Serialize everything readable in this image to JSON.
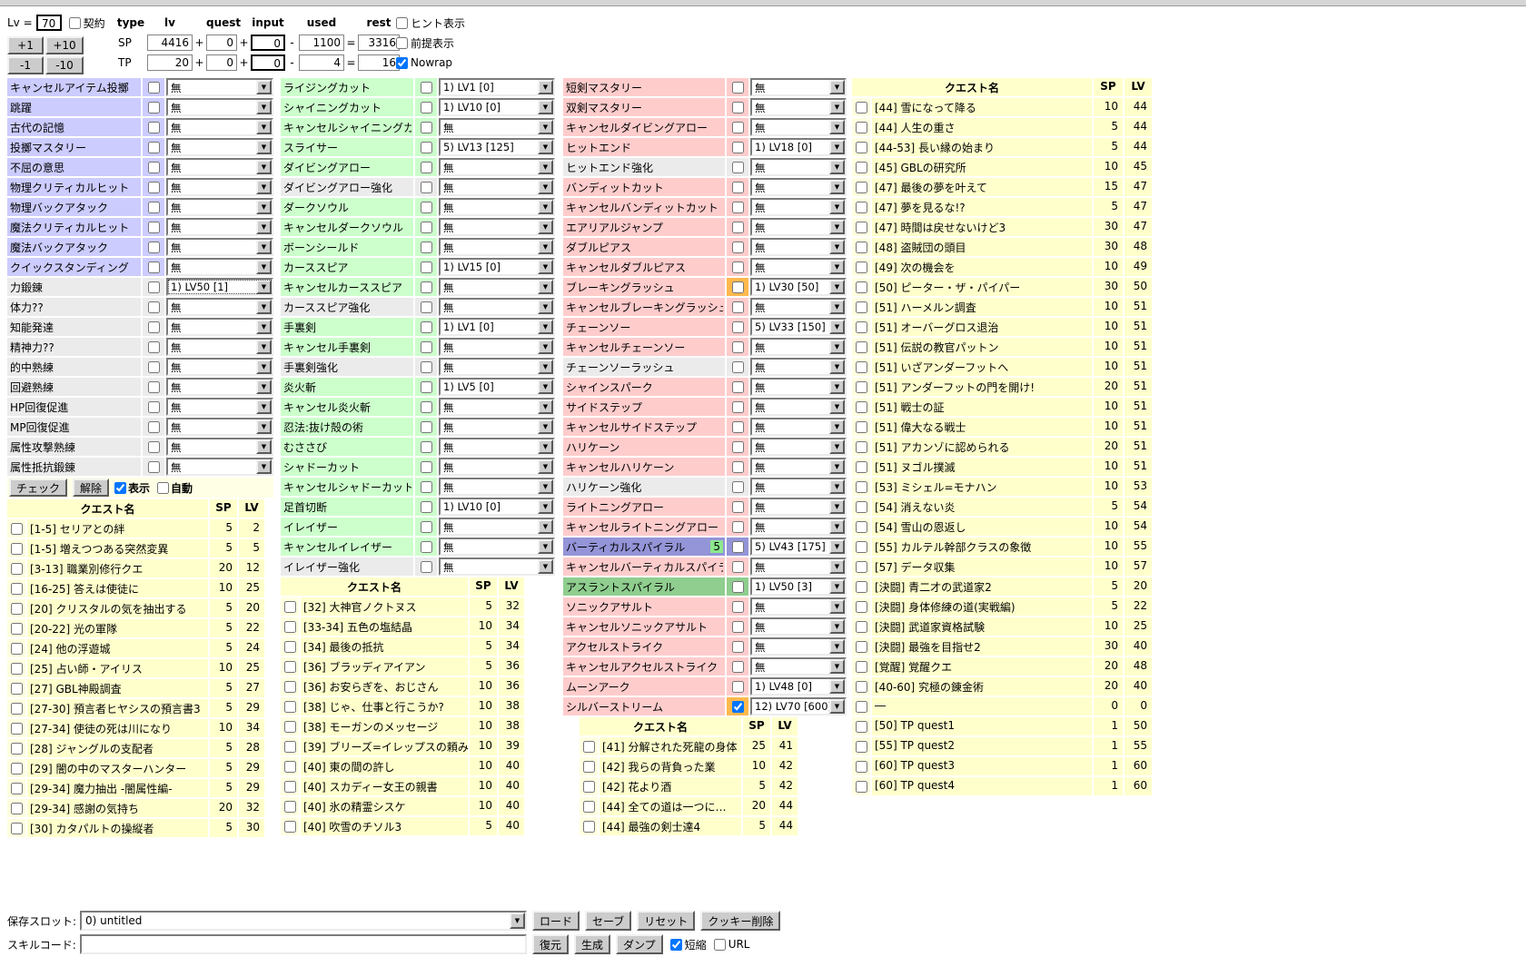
{
  "header": {
    "lv_label": "Lv =",
    "lv_value": "70",
    "contract_label": "契約",
    "contract_checked": false,
    "buttons": {
      "plus1": "+1",
      "plus10": "+10",
      "minus1": "-1",
      "minus10": "-10"
    },
    "columns": [
      "type",
      "lv",
      "quest",
      "input",
      "used",
      "rest"
    ],
    "op_plus": "+",
    "op_minus": "-",
    "op_eq": "=",
    "rows": [
      {
        "type": "SP",
        "lv": "4416",
        "quest": "0",
        "input": "0",
        "used": "1100",
        "rest": "3316"
      },
      {
        "type": "TP",
        "lv": "20",
        "quest": "0",
        "input": "0",
        "used": "4",
        "rest": "16"
      }
    ],
    "options": [
      {
        "label": "ヒント表示",
        "checked": false
      },
      {
        "label": "前提表示",
        "checked": false
      },
      {
        "label": "Nowrap",
        "checked": true
      }
    ]
  },
  "controls": {
    "check_button": "チェック",
    "clear_button": "解除",
    "show_label": "表示",
    "show_checked": true,
    "auto_label": "自動",
    "auto_checked": false
  },
  "skill_columns": [
    {
      "rows": [
        {
          "label": "キャンセルアイテム投擲",
          "bg": "p",
          "value": "無"
        },
        {
          "label": "跳躍",
          "bg": "p",
          "value": "無"
        },
        {
          "label": "古代の記憶",
          "bg": "p",
          "value": "無"
        },
        {
          "label": "投擲マスタリー",
          "bg": "p",
          "value": "無"
        },
        {
          "label": "不屈の意思",
          "bg": "p",
          "value": "無"
        },
        {
          "label": "物理クリティカルヒット",
          "bg": "p",
          "value": "無"
        },
        {
          "label": "物理バックアタック",
          "bg": "p",
          "value": "無"
        },
        {
          "label": "魔法クリティカルヒット",
          "bg": "p",
          "value": "無"
        },
        {
          "label": "魔法バックアタック",
          "bg": "p",
          "value": "無"
        },
        {
          "label": "クイックスタンディング",
          "bg": "p",
          "value": "無"
        },
        {
          "label": "力鍛錬",
          "bg": "e",
          "value": "1) LV50 [1]",
          "focus": true
        },
        {
          "label": "体力??",
          "bg": "e",
          "value": "無"
        },
        {
          "label": "知能発達",
          "bg": "e",
          "value": "無"
        },
        {
          "label": "精神力??",
          "bg": "e",
          "value": "無"
        },
        {
          "label": "的中熟練",
          "bg": "e",
          "value": "無"
        },
        {
          "label": "回避熟練",
          "bg": "e",
          "value": "無"
        },
        {
          "label": "HP回復促進",
          "bg": "e",
          "value": "無"
        },
        {
          "label": "MP回復促進",
          "bg": "e",
          "value": "無"
        },
        {
          "label": "属性攻撃熟練",
          "bg": "e",
          "value": "無"
        },
        {
          "label": "属性抵抗鍛錬",
          "bg": "e",
          "value": "無"
        }
      ]
    },
    {
      "rows": [
        {
          "label": "ライジングカット",
          "bg": "g",
          "value": "1) LV1 [0]"
        },
        {
          "label": "シャイニングカット",
          "bg": "g",
          "value": "1) LV10 [0]"
        },
        {
          "label": "キャンセルシャイニングカット",
          "bg": "g",
          "value": "無"
        },
        {
          "label": "スライサー",
          "bg": "g",
          "value": "5) LV13 [125]"
        },
        {
          "label": "ダイビングアロー",
          "bg": "g",
          "value": "無"
        },
        {
          "label": "ダイビングアロー強化",
          "bg": "e",
          "value": "無"
        },
        {
          "label": "ダークソウル",
          "bg": "g",
          "value": "無"
        },
        {
          "label": "キャンセルダークソウル",
          "bg": "g",
          "value": "無"
        },
        {
          "label": "ボーンシールド",
          "bg": "g",
          "value": "無"
        },
        {
          "label": "カーススピア",
          "bg": "g",
          "value": "1) LV15 [0]"
        },
        {
          "label": "キャンセルカーススピア",
          "bg": "g",
          "value": "無"
        },
        {
          "label": "カーススピア強化",
          "bg": "e",
          "value": "無"
        },
        {
          "label": "手裏剣",
          "bg": "g",
          "value": "1) LV1 [0]"
        },
        {
          "label": "キャンセル手裏剣",
          "bg": "g",
          "value": "無"
        },
        {
          "label": "手裏剣強化",
          "bg": "e",
          "value": "無"
        },
        {
          "label": "炎火斬",
          "bg": "g",
          "value": "1) LV5 [0]"
        },
        {
          "label": "キャンセル炎火斬",
          "bg": "g",
          "value": "無"
        },
        {
          "label": "忍法:抜け殻の術",
          "bg": "g",
          "value": "無"
        },
        {
          "label": "むささび",
          "bg": "g",
          "value": "無"
        },
        {
          "label": "シャドーカット",
          "bg": "g",
          "value": "無"
        },
        {
          "label": "キャンセルシャドーカット",
          "bg": "g",
          "value": "無"
        },
        {
          "label": "足首切断",
          "bg": "g",
          "value": "1) LV10 [0]"
        },
        {
          "label": "イレイザー",
          "bg": "g",
          "value": "無"
        },
        {
          "label": "キャンセルイレイザー",
          "bg": "g",
          "value": "無"
        },
        {
          "label": "イレイザー強化",
          "bg": "e",
          "value": "無"
        }
      ]
    },
    {
      "rows": [
        {
          "label": "短剣マスタリー",
          "bg": "k",
          "value": "無"
        },
        {
          "label": "双剣マスタリー",
          "bg": "k",
          "value": "無"
        },
        {
          "label": "キャンセルダイビングアロー",
          "bg": "k",
          "value": "無"
        },
        {
          "label": "ヒットエンド",
          "bg": "k",
          "value": "1) LV18 [0]"
        },
        {
          "label": "ヒットエンド強化",
          "bg": "e",
          "value": "無"
        },
        {
          "label": "バンディットカット",
          "bg": "k",
          "value": "無"
        },
        {
          "label": "キャンセルバンディットカット",
          "bg": "k",
          "value": "無"
        },
        {
          "label": "エアリアルジャンプ",
          "bg": "k",
          "value": "無"
        },
        {
          "label": "ダブルピアス",
          "bg": "k",
          "value": "無"
        },
        {
          "label": "キャンセルダブルピアス",
          "bg": "k",
          "value": "無"
        },
        {
          "label": "ブレーキングラッシュ",
          "bg": "k",
          "value": "1) LV30 [50]",
          "hl": true
        },
        {
          "label": "キャンセルブレーキングラッシュ",
          "bg": "k",
          "value": "無"
        },
        {
          "label": "チェーンソー",
          "bg": "k",
          "value": "5) LV33 [150]"
        },
        {
          "label": "キャンセルチェーンソー",
          "bg": "k",
          "value": "無"
        },
        {
          "label": "チェーンソーラッシュ",
          "bg": "e",
          "value": "無"
        },
        {
          "label": "シャインスパーク",
          "bg": "k",
          "value": "無"
        },
        {
          "label": "サイドステップ",
          "bg": "k",
          "value": "無"
        },
        {
          "label": "キャンセルサイドステップ",
          "bg": "k",
          "value": "無"
        },
        {
          "label": "ハリケーン",
          "bg": "k",
          "value": "無"
        },
        {
          "label": "キャンセルハリケーン",
          "bg": "k",
          "value": "無"
        },
        {
          "label": "ハリケーン強化",
          "bg": "e",
          "value": "無"
        },
        {
          "label": "ライトニングアロー",
          "bg": "k",
          "value": "無"
        },
        {
          "label": "キャンセルライトニングアロー",
          "bg": "k",
          "value": "無"
        },
        {
          "label": "バーティカルスパイラル",
          "bg": "b",
          "value": "5) LV43 [175]",
          "badge": "5"
        },
        {
          "label": "キャンセルバーティカルスパイラル",
          "bg": "k",
          "value": "無"
        },
        {
          "label": "アスラントスパイラル",
          "bg": "n",
          "value": "1) LV50 [3]"
        },
        {
          "label": "ソニックアサルト",
          "bg": "k",
          "value": "無"
        },
        {
          "label": "キャンセルソニックアサルト",
          "bg": "k",
          "value": "無"
        },
        {
          "label": "アクセルストライク",
          "bg": "k",
          "value": "無"
        },
        {
          "label": "キャンセルアクセルストライク",
          "bg": "k",
          "value": "無"
        },
        {
          "label": "ムーンアーク",
          "bg": "k",
          "value": "1) LV48 [0]"
        },
        {
          "label": "シルバーストリーム",
          "bg": "k",
          "value": "12) LV70 [600]",
          "checked": true,
          "hl": true
        }
      ]
    }
  ],
  "quest_tables": [
    {
      "header": {
        "name": "クエスト名",
        "sp": "SP",
        "lv": "LV"
      },
      "rows": [
        {
          "label": "[1-5] セリアとの絆",
          "sp": 5,
          "lv": 2
        },
        {
          "label": "[1-5] 増えつつある突然変異",
          "sp": 5,
          "lv": 5
        },
        {
          "label": "[3-13] 職業別修行クエ",
          "sp": 20,
          "lv": 12
        },
        {
          "label": "[16-25] 答えは使徒に",
          "sp": 10,
          "lv": 25
        },
        {
          "label": "[20] クリスタルの気を抽出する",
          "sp": 5,
          "lv": 20
        },
        {
          "label": "[20-22] 光の軍隊",
          "sp": 5,
          "lv": 22
        },
        {
          "label": "[24] 他の浮遊城",
          "sp": 5,
          "lv": 24
        },
        {
          "label": "[25] 占い師・アイリス",
          "sp": 10,
          "lv": 25
        },
        {
          "label": "[27] GBL神殿調査",
          "sp": 5,
          "lv": 27
        },
        {
          "label": "[27-30] 預言者ヒヤシスの預言書3",
          "sp": 5,
          "lv": 29
        },
        {
          "label": "[27-34] 使徒の死は川になり",
          "sp": 10,
          "lv": 34
        },
        {
          "label": "[28] ジャングルの支配者",
          "sp": 5,
          "lv": 28
        },
        {
          "label": "[29] 闇の中のマスターハンター",
          "sp": 5,
          "lv": 29
        },
        {
          "label": "[29-34] 魔力抽出 -闇属性編-",
          "sp": 5,
          "lv": 29
        },
        {
          "label": "[29-34] 感謝の気持ち",
          "sp": 20,
          "lv": 32
        },
        {
          "label": "[30] カタパルトの操縦者",
          "sp": 5,
          "lv": 30
        }
      ]
    },
    {
      "header": {
        "name": "クエスト名",
        "sp": "SP",
        "lv": "LV"
      },
      "rows": [
        {
          "label": "[32] 大神官ノクトヌス",
          "sp": 5,
          "lv": 32
        },
        {
          "label": "[33-34] 五色の塩結晶",
          "sp": 10,
          "lv": 34
        },
        {
          "label": "[34] 最後の抵抗",
          "sp": 5,
          "lv": 34
        },
        {
          "label": "[36] ブラッディアイアン",
          "sp": 5,
          "lv": 36
        },
        {
          "label": "[36] お安らぎを、おじさん",
          "sp": 10,
          "lv": 36
        },
        {
          "label": "[38] じゃ、仕事と行こうか?",
          "sp": 10,
          "lv": 38
        },
        {
          "label": "[38] モーガンのメッセージ",
          "sp": 10,
          "lv": 38
        },
        {
          "label": "[39] ブリーズ=イレップスの頼み",
          "sp": 10,
          "lv": 39
        },
        {
          "label": "[40] 東の間の許し",
          "sp": 10,
          "lv": 40
        },
        {
          "label": "[40] スカディー女王の親書",
          "sp": 10,
          "lv": 40
        },
        {
          "label": "[40] 氷の精霊シスケ",
          "sp": 10,
          "lv": 40
        },
        {
          "label": "[40] 吹雪のチソル3",
          "sp": 5,
          "lv": 40
        }
      ]
    },
    {
      "header": {
        "name": "クエスト名",
        "sp": "SP",
        "lv": "LV"
      },
      "rows": [
        {
          "label": "[41] 分解された死龍の身体",
          "sp": 25,
          "lv": 41
        },
        {
          "label": "[42] 我らの背負った業",
          "sp": 10,
          "lv": 42
        },
        {
          "label": "[42] 花より酒",
          "sp": 5,
          "lv": 42
        },
        {
          "label": "[44] 全ての道は一つに…",
          "sp": 20,
          "lv": 44
        },
        {
          "label": "[44] 最強の剣士達4",
          "sp": 5,
          "lv": 44
        }
      ]
    },
    {
      "header": {
        "name": "クエスト名",
        "sp": "SP",
        "lv": "LV"
      },
      "rows": [
        {
          "label": "[44] 雪になって降る",
          "sp": 10,
          "lv": 44
        },
        {
          "label": "[44] 人生の重さ",
          "sp": 5,
          "lv": 44
        },
        {
          "label": "[44-53] 長い縁の始まり",
          "sp": 5,
          "lv": 44
        },
        {
          "label": "[45] GBLの研究所",
          "sp": 10,
          "lv": 45
        },
        {
          "label": "[47] 最後の夢を叶えて",
          "sp": 15,
          "lv": 47
        },
        {
          "label": "[47] 夢を見るな!?",
          "sp": 5,
          "lv": 47
        },
        {
          "label": "[47] 時間は戻せないけど3",
          "sp": 30,
          "lv": 47
        },
        {
          "label": "[48] 盗賊団の頭目",
          "sp": 30,
          "lv": 48
        },
        {
          "label": "[49] 次の機会を",
          "sp": 10,
          "lv": 49
        },
        {
          "label": "[50] ピーター・ザ・パイパー",
          "sp": 30,
          "lv": 50
        },
        {
          "label": "[51] ハーメルン調査",
          "sp": 10,
          "lv": 51
        },
        {
          "label": "[51] オーバーグロス退治",
          "sp": 10,
          "lv": 51
        },
        {
          "label": "[51] 伝説の教官パットン",
          "sp": 10,
          "lv": 51
        },
        {
          "label": "[51] いざアンダーフットへ",
          "sp": 10,
          "lv": 51
        },
        {
          "label": "[51] アンダーフットの門を開け!",
          "sp": 20,
          "lv": 51
        },
        {
          "label": "[51] 戦士の証",
          "sp": 10,
          "lv": 51
        },
        {
          "label": "[51] 偉大なる戦士",
          "sp": 10,
          "lv": 51
        },
        {
          "label": "[51] アカンゾに認められる",
          "sp": 20,
          "lv": 51
        },
        {
          "label": "[51] ヌゴル撲滅",
          "sp": 10,
          "lv": 51
        },
        {
          "label": "[53] ミシェル=モナハン",
          "sp": 10,
          "lv": 53
        },
        {
          "label": "[54] 消えない炎",
          "sp": 5,
          "lv": 54
        },
        {
          "label": "[54] 雪山の恩返し",
          "sp": 10,
          "lv": 54
        },
        {
          "label": "[55] カルテル幹部クラスの象徴",
          "sp": 10,
          "lv": 55
        },
        {
          "label": "[57] データ収集",
          "sp": 10,
          "lv": 57
        },
        {
          "label": "[決闘] 青二才の武道家2",
          "sp": 5,
          "lv": 20
        },
        {
          "label": "[決闘] 身体修練の道(実戦編)",
          "sp": 5,
          "lv": 22
        },
        {
          "label": "[決闘] 武道家資格試験",
          "sp": 10,
          "lv": 25
        },
        {
          "label": "[決闘] 最強を目指せ2",
          "sp": 30,
          "lv": 40
        },
        {
          "label": "[覚醒] 覚醒クエ",
          "sp": 20,
          "lv": 48
        },
        {
          "label": "[40-60] 究極の錬金術",
          "sp": 20,
          "lv": 40
        },
        {
          "label": "―",
          "sp": 0,
          "lv": 0
        },
        {
          "label": "[50] TP quest1",
          "sp": 1,
          "lv": 50
        },
        {
          "label": "[55] TP quest2",
          "sp": 1,
          "lv": 55
        },
        {
          "label": "[60] TP quest3",
          "sp": 1,
          "lv": 60
        },
        {
          "label": "[60] TP quest4",
          "sp": 1,
          "lv": 60
        }
      ]
    }
  ],
  "footer": {
    "save_slot_label": "保存スロット:",
    "save_slot_value": "0) untitled",
    "load_button": "ロード",
    "save_button": "セーブ",
    "reset_button": "リセット",
    "cookie_delete_button": "クッキー削除",
    "skill_code_label": "スキルコード:",
    "skill_code_value": "",
    "restore_button": "復元",
    "generate_button": "生成",
    "dump_button": "ダンプ",
    "shorten_label": "短縮",
    "shorten_checked": true,
    "url_label": "URL",
    "url_checked": false
  }
}
